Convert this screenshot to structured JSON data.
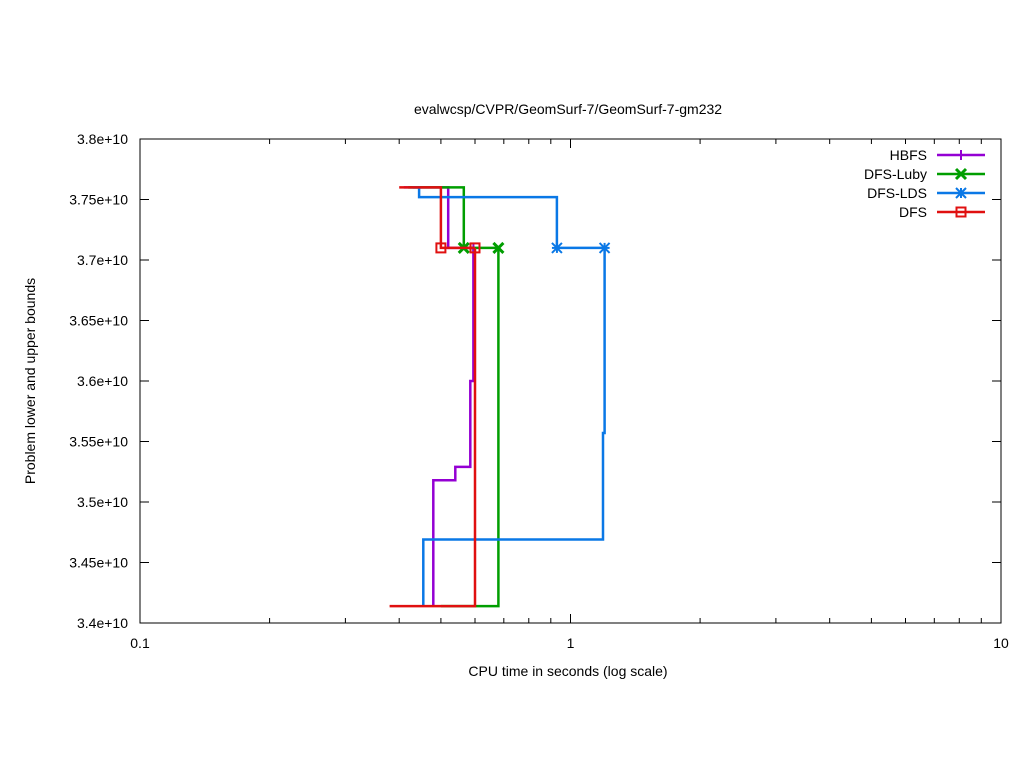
{
  "chart_data": {
    "type": "line",
    "title": "evalwcsp/CVPR/GeomSurf-7/GeomSurf-7-gm232",
    "xlabel": "CPU time in seconds (log scale)",
    "ylabel": "Problem lower and upper bounds",
    "x_scale": "log",
    "xlim": [
      0.1,
      10
    ],
    "ylim": [
      34000000000,
      38000000000
    ],
    "x_ticks": [
      {
        "value": 0.1,
        "label": "0.1"
      },
      {
        "value": 1,
        "label": "1"
      },
      {
        "value": 10,
        "label": "10"
      }
    ],
    "y_ticks": [
      {
        "value": 34000000000,
        "label": "3.4e+10"
      },
      {
        "value": 34500000000,
        "label": "3.45e+10"
      },
      {
        "value": 35000000000,
        "label": "3.5e+10"
      },
      {
        "value": 35500000000,
        "label": "3.55e+10"
      },
      {
        "value": 36000000000,
        "label": "3.6e+10"
      },
      {
        "value": 36500000000,
        "label": "3.65e+10"
      },
      {
        "value": 37000000000,
        "label": "3.7e+10"
      },
      {
        "value": 37500000000,
        "label": "3.75e+10"
      },
      {
        "value": 38000000000,
        "label": "3.8e+10"
      }
    ],
    "legend_position": "top-right",
    "series": [
      {
        "name": "HBFS",
        "color": "#9400d3",
        "marker": "plus",
        "upper": [
          [
            0.41,
            37600000000
          ],
          [
            0.52,
            37600000000
          ],
          [
            0.52,
            37100000000
          ],
          [
            0.595,
            37100000000
          ]
        ],
        "lower": [
          [
            0.48,
            34140000000
          ],
          [
            0.48,
            35180000000
          ],
          [
            0.54,
            35180000000
          ],
          [
            0.54,
            35290000000
          ],
          [
            0.585,
            35290000000
          ],
          [
            0.585,
            36000000000
          ],
          [
            0.595,
            36000000000
          ],
          [
            0.595,
            37100000000
          ]
        ],
        "markers": [
          [
            0.595,
            37100000000
          ]
        ]
      },
      {
        "name": "DFS-Luby",
        "color": "#009e00",
        "marker": "cross",
        "upper": [
          [
            0.42,
            37600000000
          ],
          [
            0.565,
            37600000000
          ],
          [
            0.565,
            37100000000
          ],
          [
            0.68,
            37100000000
          ]
        ],
        "lower": [
          [
            0.5,
            34140000000
          ],
          [
            0.68,
            34140000000
          ],
          [
            0.68,
            37100000000
          ]
        ],
        "markers": [
          [
            0.565,
            37100000000
          ],
          [
            0.68,
            37100000000
          ]
        ]
      },
      {
        "name": "DFS-LDS",
        "color": "#0a78e6",
        "marker": "star",
        "upper": [
          [
            0.43,
            37600000000
          ],
          [
            0.445,
            37600000000
          ],
          [
            0.445,
            37520000000
          ],
          [
            0.93,
            37520000000
          ],
          [
            0.93,
            37100000000
          ],
          [
            1.2,
            37100000000
          ]
        ],
        "lower": [
          [
            0.455,
            34140000000
          ],
          [
            0.455,
            34690000000
          ],
          [
            1.19,
            34690000000
          ],
          [
            1.19,
            35570000000
          ],
          [
            1.2,
            35570000000
          ],
          [
            1.2,
            37100000000
          ]
        ],
        "markers": [
          [
            0.93,
            37100000000
          ],
          [
            1.2,
            37100000000
          ]
        ]
      },
      {
        "name": "DFS",
        "color": "#e01010",
        "marker": "square",
        "upper": [
          [
            0.4,
            37600000000
          ],
          [
            0.5,
            37600000000
          ],
          [
            0.5,
            37100000000
          ],
          [
            0.6,
            37100000000
          ]
        ],
        "lower": [
          [
            0.38,
            34140000000
          ],
          [
            0.6,
            34140000000
          ],
          [
            0.6,
            37100000000
          ]
        ],
        "markers": [
          [
            0.5,
            37100000000
          ],
          [
            0.6,
            37100000000
          ]
        ]
      }
    ]
  }
}
